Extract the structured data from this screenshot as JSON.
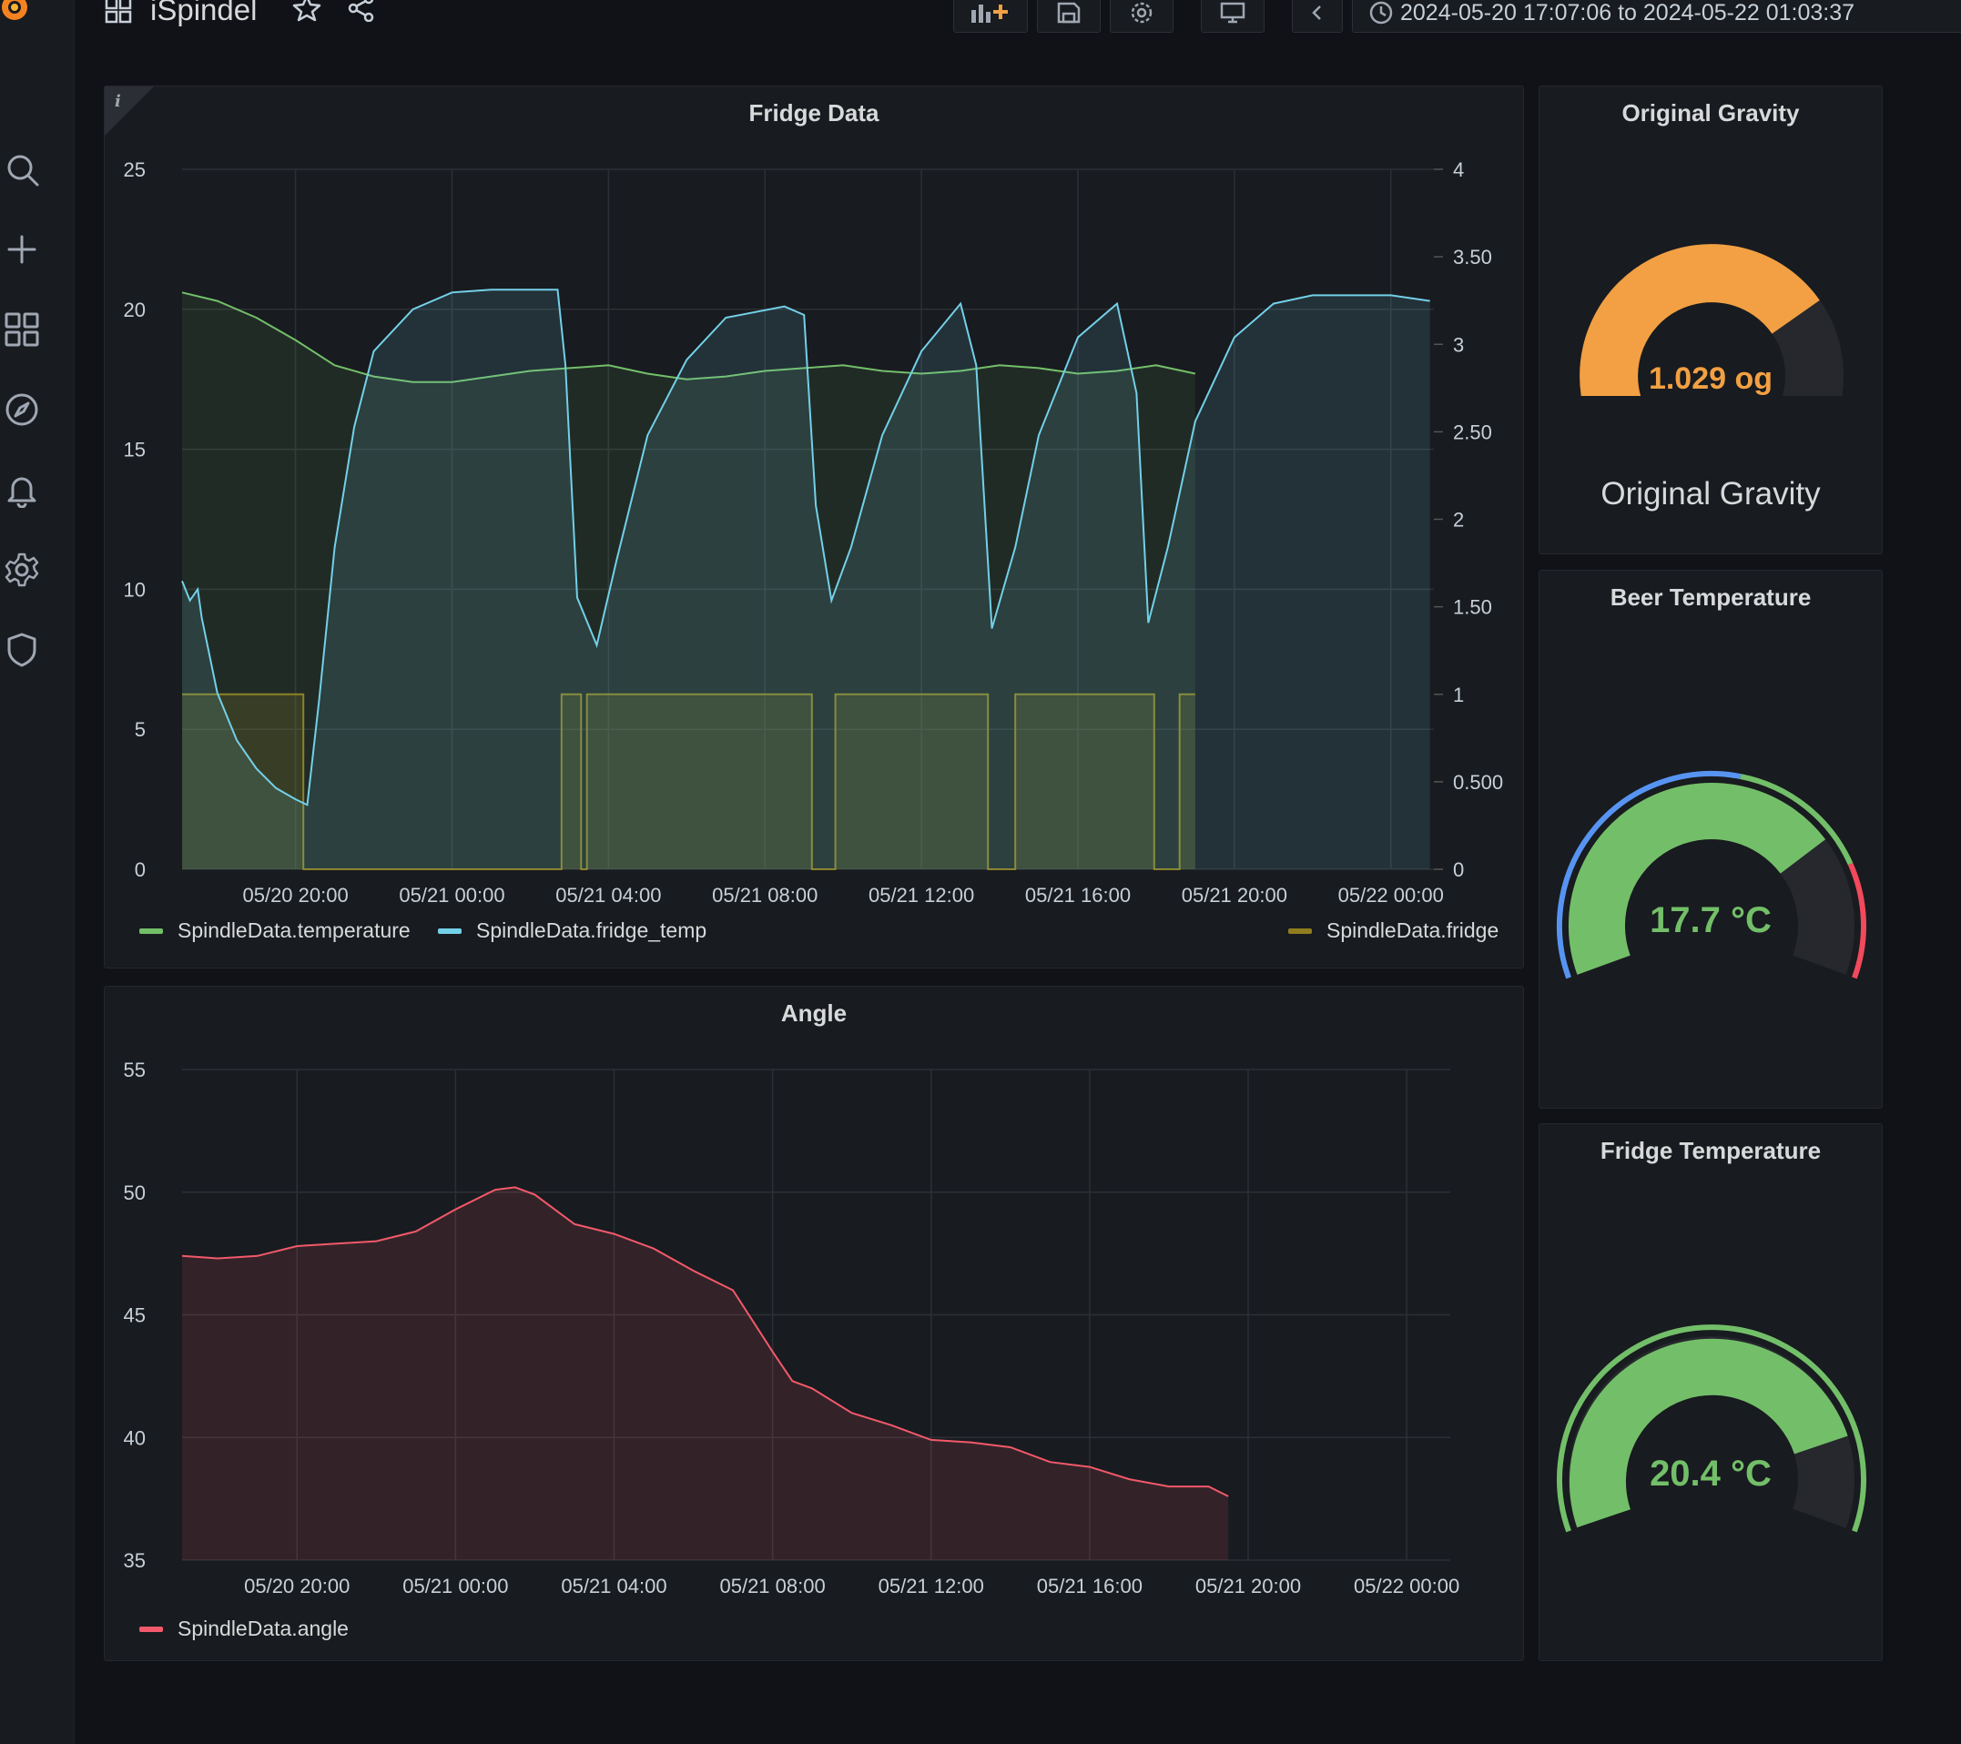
{
  "dashboard": {
    "title": "iSpindel",
    "time_range": "2024-05-20 17:07:06 to 2024-05-22 01:03:37"
  },
  "colors": {
    "background": "#111217",
    "panel": "#181b1f",
    "temperature": "#73bf69",
    "fridge_temp": "#73d0e8",
    "fridge": "#8f7d1f",
    "angle": "#f2596a",
    "gauge_orange": "#f2a043",
    "gauge_green": "#73bf69",
    "gauge_blue": "#5794f2",
    "gauge_red": "#f2495c"
  },
  "sidebar": {
    "icons": [
      "grafana-logo-icon",
      "search-icon",
      "plus-icon",
      "dashboards-icon",
      "explore-icon",
      "bell-icon",
      "gear-icon",
      "shield-icon"
    ]
  },
  "panels": {
    "fridge_data": {
      "title": "Fridge Data",
      "info": "i",
      "legend": [
        "SpindleData.temperature",
        "SpindleData.fridge_temp",
        "SpindleData.fridge"
      ]
    },
    "angle": {
      "title": "Angle",
      "legend": [
        "SpindleData.angle"
      ]
    },
    "original_gravity": {
      "title": "Original Gravity",
      "value_text": "1.029 og",
      "label": "Original Gravity",
      "fraction": 0.75
    },
    "beer_temperature": {
      "title": "Beer Temperature",
      "value_text": "17.7 °C",
      "fraction": 0.74
    },
    "fridge_temperature": {
      "title": "Fridge Temperature",
      "value_text": "20.4 °C",
      "fraction": 0.83
    }
  },
  "chart_data": [
    {
      "type": "line",
      "title": "Fridge Data",
      "x_ticks": [
        "05/20 20:00",
        "05/21 00:00",
        "05/21 04:00",
        "05/21 08:00",
        "05/21 12:00",
        "05/21 16:00",
        "05/21 20:00",
        "05/22 00:00"
      ],
      "y_left_ticks": [
        "0",
        "5",
        "10",
        "15",
        "20",
        "25"
      ],
      "y_right_ticks": [
        "0",
        "0.500",
        "1",
        "1.50",
        "2",
        "2.50",
        "3",
        "3.50",
        "4"
      ],
      "ylim_left": [
        0,
        25
      ],
      "ylim_right": [
        0,
        4
      ],
      "series": [
        {
          "name": "SpindleData.temperature",
          "axis": "left",
          "x": [
            17.1,
            18.0,
            19.0,
            20.0,
            21.0,
            22.0,
            23.0,
            24.0,
            25.0,
            26.0,
            27.0,
            28.0,
            29.0,
            30.0,
            31.0,
            32.0,
            33.0,
            34.0,
            35.0,
            36.0,
            37.0,
            38.0,
            39.0,
            40.0,
            41.0,
            42.0,
            43.0
          ],
          "y": [
            20.6,
            20.3,
            19.7,
            18.9,
            18.0,
            17.6,
            17.4,
            17.4,
            17.6,
            17.8,
            17.9,
            18.0,
            17.7,
            17.5,
            17.6,
            17.8,
            17.9,
            18.0,
            17.8,
            17.7,
            17.8,
            18.0,
            17.9,
            17.7,
            17.8,
            18.0,
            17.7
          ]
        },
        {
          "name": "SpindleData.fridge_temp",
          "axis": "left",
          "x": [
            17.1,
            17.3,
            17.5,
            17.6,
            18.0,
            18.5,
            19.0,
            19.5,
            20.0,
            20.3,
            20.6,
            21.0,
            21.5,
            22.0,
            23.0,
            24.0,
            25.0,
            26.0,
            26.7,
            26.9,
            27.2,
            27.7,
            28.2,
            29.0,
            30.0,
            31.0,
            32.5,
            33.0,
            33.3,
            33.7,
            34.2,
            35.0,
            36.0,
            37.0,
            37.4,
            37.8,
            38.4,
            39.0,
            40.0,
            41.0,
            41.5,
            41.8,
            42.3,
            43.0,
            44.0,
            45.0,
            46.0,
            47.0,
            48.0,
            49.0,
            49.0
          ],
          "y": [
            10.3,
            9.6,
            10.0,
            9.0,
            6.3,
            4.6,
            3.6,
            2.9,
            2.5,
            2.3,
            6.0,
            11.5,
            15.8,
            18.5,
            20.0,
            20.6,
            20.7,
            20.7,
            20.7,
            18.0,
            9.7,
            8.0,
            11.0,
            15.5,
            18.2,
            19.7,
            20.1,
            19.8,
            13.0,
            9.6,
            11.5,
            15.5,
            18.5,
            20.2,
            18.0,
            8.6,
            11.5,
            15.5,
            19.0,
            20.2,
            17.0,
            8.8,
            11.5,
            16.0,
            19.0,
            20.2,
            20.5,
            20.5,
            20.5,
            20.3,
            20.3
          ]
        },
        {
          "name": "SpindleData.fridge",
          "axis": "right",
          "x": [
            17.1,
            20.2,
            20.2,
            26.8,
            26.8,
            27.3,
            27.3,
            27.45,
            27.45,
            33.2,
            33.2,
            33.8,
            33.8,
            37.7,
            37.7,
            38.4,
            38.4,
            41.95,
            41.95,
            42.6,
            42.6,
            43.0
          ],
          "y": [
            1,
            1,
            0,
            0,
            1,
            1,
            0,
            0,
            1,
            1,
            0,
            0,
            1,
            1,
            0,
            0,
            1,
            1,
            0,
            0,
            1,
            1
          ]
        }
      ]
    },
    {
      "type": "area",
      "title": "Angle",
      "x_ticks": [
        "05/20 20:00",
        "05/21 00:00",
        "05/21 04:00",
        "05/21 08:00",
        "05/21 12:00",
        "05/21 16:00",
        "05/21 20:00",
        "05/22 00:00"
      ],
      "y_ticks": [
        "35",
        "40",
        "45",
        "50",
        "55"
      ],
      "ylim": [
        35,
        55
      ],
      "series": [
        {
          "name": "SpindleData.angle",
          "x": [
            17.1,
            18.0,
            19.0,
            20.0,
            21.0,
            22.0,
            23.0,
            24.0,
            25.0,
            25.5,
            26.0,
            27.0,
            28.0,
            29.0,
            30.0,
            31.0,
            32.0,
            32.5,
            33.0,
            34.0,
            35.0,
            36.0,
            37.0,
            38.0,
            39.0,
            40.0,
            41.0,
            42.0,
            43.0,
            43.5
          ],
          "y": [
            47.4,
            47.3,
            47.4,
            47.8,
            47.9,
            48.0,
            48.4,
            49.3,
            50.1,
            50.2,
            49.9,
            48.7,
            48.3,
            47.7,
            46.8,
            46.0,
            43.5,
            42.3,
            42.0,
            41.0,
            40.5,
            39.9,
            39.8,
            39.6,
            39.0,
            38.8,
            38.3,
            38.0,
            38.0,
            37.6
          ]
        }
      ]
    }
  ]
}
